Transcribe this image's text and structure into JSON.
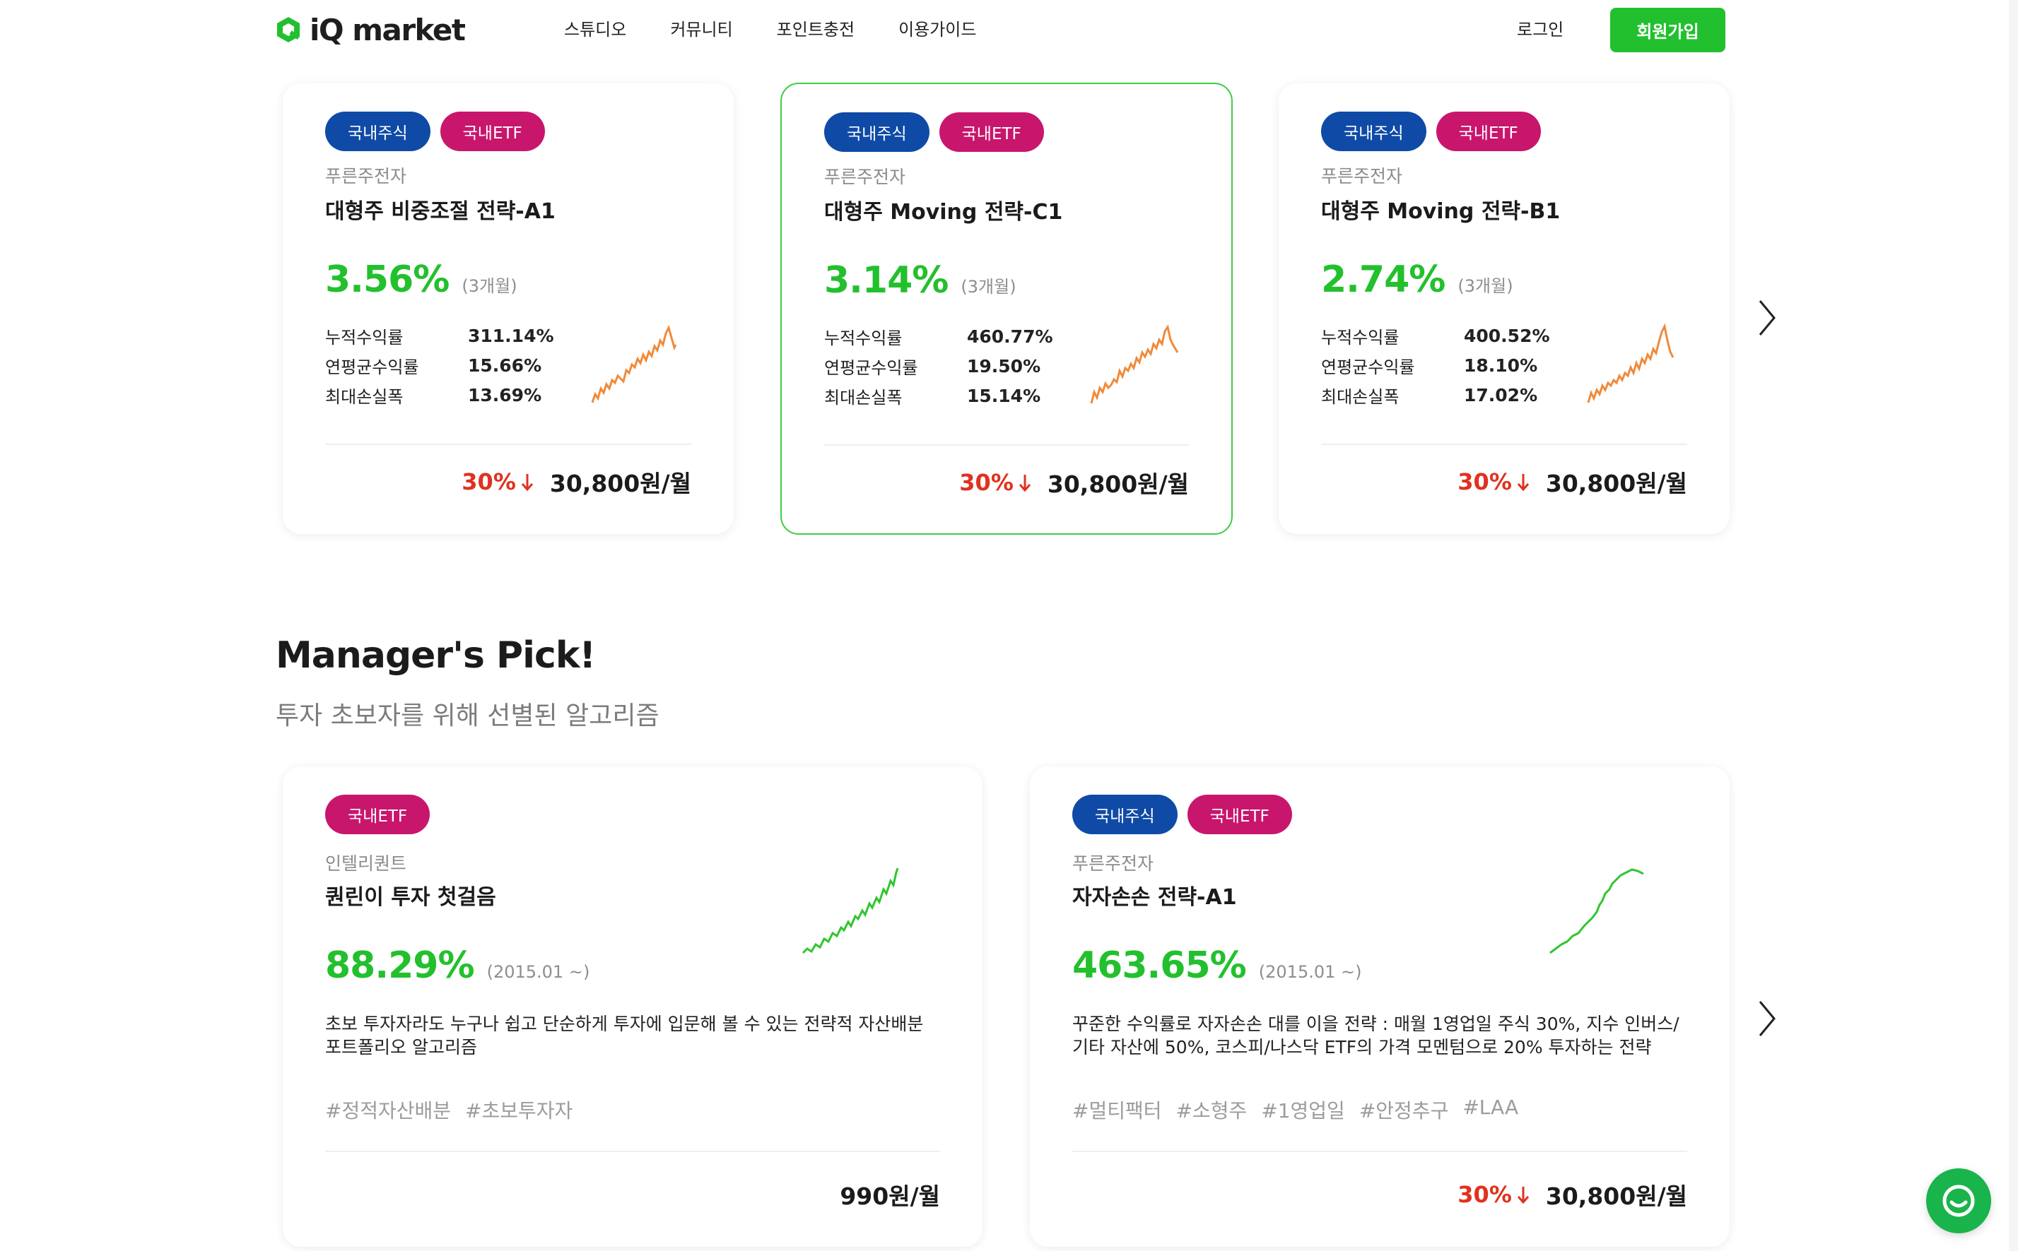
{
  "header": {
    "logo": {
      "mark": "iQ",
      "text": "market"
    },
    "nav": [
      "스튜디오",
      "커뮤니티",
      "포인트충전",
      "이용가이드"
    ],
    "login": "로그인",
    "signup": "회원가입"
  },
  "top_cards": [
    {
      "tags": [
        {
          "label": "국내주식",
          "color": "#0f4aa6"
        },
        {
          "label": "국내ETF",
          "color": "#c8166d"
        }
      ],
      "provider": "푸른주전자",
      "name": "대형주 비중조절 전략-A1",
      "return": "3.56%",
      "period": "(3개월)",
      "metrics": [
        {
          "label": "누적수익률",
          "value": "311.14%"
        },
        {
          "label": "연평균수익률",
          "value": "15.66%"
        },
        {
          "label": "최대손실폭",
          "value": "13.69%"
        }
      ],
      "discount": "30%",
      "price": "30,800원/월",
      "active": false
    },
    {
      "tags": [
        {
          "label": "국내주식",
          "color": "#0f4aa6"
        },
        {
          "label": "국내ETF",
          "color": "#c8166d"
        }
      ],
      "provider": "푸른주전자",
      "name": "대형주 Moving 전략-C1",
      "return": "3.14%",
      "period": "(3개월)",
      "metrics": [
        {
          "label": "누적수익률",
          "value": "460.77%"
        },
        {
          "label": "연평균수익률",
          "value": "19.50%"
        },
        {
          "label": "최대손실폭",
          "value": "15.14%"
        }
      ],
      "discount": "30%",
      "price": "30,800원/월",
      "active": true
    },
    {
      "tags": [
        {
          "label": "국내주식",
          "color": "#0f4aa6"
        },
        {
          "label": "국내ETF",
          "color": "#c8166d"
        }
      ],
      "provider": "푸른주전자",
      "name": "대형주 Moving 전략-B1",
      "return": "2.74%",
      "period": "(3개월)",
      "metrics": [
        {
          "label": "누적수익률",
          "value": "400.52%"
        },
        {
          "label": "연평균수익률",
          "value": "18.10%"
        },
        {
          "label": "최대손실폭",
          "value": "17.02%"
        }
      ],
      "discount": "30%",
      "price": "30,800원/월",
      "active": false
    }
  ],
  "section": {
    "title": "Manager's Pick!",
    "subtitle": "투자 초보자를 위해 선별된 알고리즘"
  },
  "pick_cards": [
    {
      "tags": [
        {
          "label": "국내ETF",
          "color": "#c8166d"
        }
      ],
      "provider": "인텔리퀀트",
      "name": "퀀린이 투자 첫걸음",
      "return": "88.29%",
      "period": "(2015.01 ~)",
      "description": "초보 투자자라도 누구나 쉽고 단순하게 투자에 입문해 볼 수 있는 전략적 자산배분 포트폴리오 알고리즘",
      "hashtags": [
        "#정적자산배분",
        "#초보투자자"
      ],
      "discount": "",
      "price": "990원/월"
    },
    {
      "tags": [
        {
          "label": "국내주식",
          "color": "#0f4aa6"
        },
        {
          "label": "국내ETF",
          "color": "#c8166d"
        }
      ],
      "provider": "푸른주전자",
      "name": "자자손손 전략-A1",
      "return": "463.65%",
      "period": "(2015.01 ~)",
      "description": "꾸준한 수익률로 자자손손 대를 이을 전략 : 매월 1영업일 주식 30%, 지수 인버스/기타 자산에 50%, 코스피/나스닥 ETF의 가격 모멘텀으로 20% 투자하는 전략",
      "hashtags": [
        "#멀티팩터",
        "#소형주",
        "#1영업일",
        "#안정추구",
        "#LAA"
      ],
      "discount": "30%",
      "price": "30,800원/월"
    }
  ],
  "colors": {
    "accent_green": "#22c02e",
    "return_green": "#23c02d",
    "discount_red": "#e0321f",
    "spark_orange": "#f08a3a",
    "spark_green": "#2fc62f"
  },
  "icons": {
    "next": "chevron-right-icon",
    "discount": "arrow-down-icon",
    "chat": "chat-icon",
    "logo": "iq-logo-icon"
  }
}
